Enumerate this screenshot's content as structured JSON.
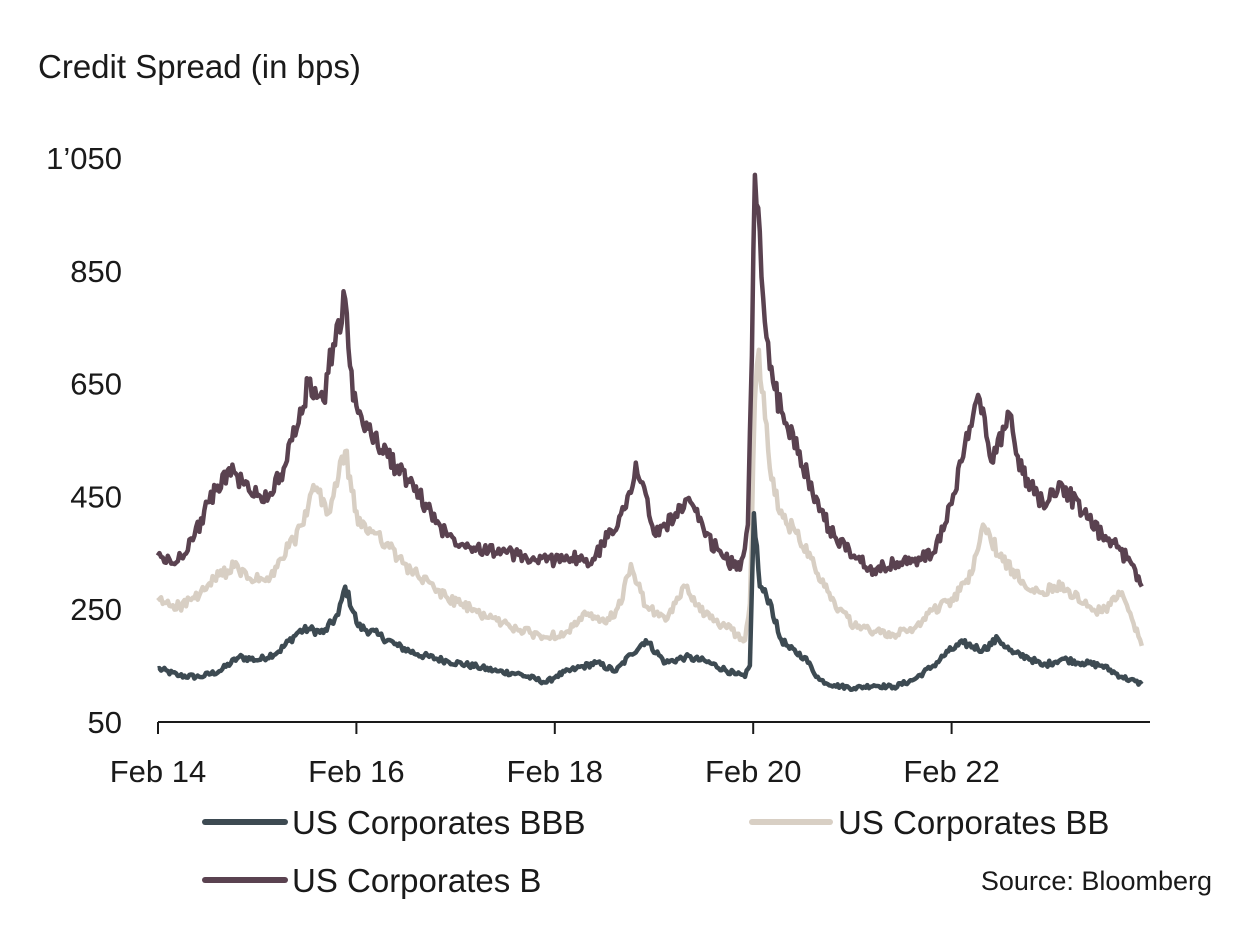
{
  "chart_data": {
    "type": "line",
    "title": "",
    "ylabel": "Credit Spread (in bps)",
    "xlabel": "",
    "ylim": [
      50,
      1050
    ],
    "yticks": [
      50,
      250,
      450,
      650,
      850,
      1050
    ],
    "ytick_labels": [
      "50",
      "250",
      "450",
      "650",
      "850",
      "1’050"
    ],
    "xlim": [
      2014.083,
      2024.083
    ],
    "xticks": [
      2014.083,
      2016.083,
      2018.083,
      2020.083,
      2022.083
    ],
    "xtick_labels": [
      "Feb 14",
      "Feb 16",
      "Feb 18",
      "Feb 20",
      "Feb 22"
    ],
    "grid": false,
    "legend_position": "bottom",
    "source": "Source: Bloomberg",
    "series": [
      {
        "name": "US Corporates BBB",
        "color": "#3d4a52",
        "x": [
          2014.08,
          2014.3,
          2014.5,
          2014.7,
          2014.9,
          2015.1,
          2015.3,
          2015.5,
          2015.6,
          2015.75,
          2015.9,
          2015.97,
          2016.1,
          2016.3,
          2016.5,
          2016.7,
          2017.0,
          2017.3,
          2017.5,
          2017.7,
          2018.0,
          2018.1,
          2018.3,
          2018.5,
          2018.7,
          2018.85,
          2019.0,
          2019.2,
          2019.4,
          2019.6,
          2019.9,
          2020.0,
          2020.05,
          2020.09,
          2020.15,
          2020.25,
          2020.35,
          2020.45,
          2020.6,
          2020.75,
          2020.9,
          2021.1,
          2021.3,
          2021.5,
          2021.7,
          2021.9,
          2022.05,
          2022.2,
          2022.4,
          2022.55,
          2022.7,
          2022.85,
          2023.0,
          2023.2,
          2023.4,
          2023.6,
          2023.8,
          2024.0
        ],
        "values": [
          145,
          132,
          130,
          140,
          165,
          160,
          175,
          210,
          215,
          208,
          240,
          290,
          220,
          205,
          185,
          170,
          158,
          148,
          140,
          136,
          120,
          132,
          145,
          155,
          140,
          170,
          195,
          155,
          165,
          158,
          135,
          130,
          150,
          420,
          290,
          265,
          200,
          180,
          165,
          125,
          115,
          110,
          115,
          112,
          125,
          150,
          175,
          190,
          178,
          198,
          172,
          165,
          150,
          162,
          155,
          150,
          130,
          117
        ]
      },
      {
        "name": "US Corporates BB",
        "color": "#d8cfc4",
        "x": [
          2014.08,
          2014.3,
          2014.5,
          2014.7,
          2014.85,
          2015.0,
          2015.2,
          2015.4,
          2015.55,
          2015.65,
          2015.8,
          2015.97,
          2016.1,
          2016.3,
          2016.5,
          2016.7,
          2017.0,
          2017.3,
          2017.5,
          2017.7,
          2018.0,
          2018.2,
          2018.4,
          2018.6,
          2018.75,
          2018.85,
          2019.0,
          2019.2,
          2019.4,
          2019.6,
          2019.8,
          2020.0,
          2020.05,
          2020.1,
          2020.14,
          2020.25,
          2020.35,
          2020.5,
          2020.65,
          2020.8,
          2020.95,
          2021.1,
          2021.3,
          2021.5,
          2021.7,
          2021.9,
          2022.1,
          2022.3,
          2022.4,
          2022.6,
          2022.8,
          2023.0,
          2023.2,
          2023.4,
          2023.6,
          2023.8,
          2024.0
        ],
        "values": [
          265,
          255,
          275,
          310,
          325,
          305,
          300,
          360,
          400,
          470,
          420,
          530,
          400,
          385,
          340,
          310,
          270,
          245,
          230,
          215,
          200,
          210,
          240,
          225,
          260,
          330,
          255,
          230,
          290,
          240,
          220,
          195,
          260,
          620,
          710,
          500,
          420,
          390,
          350,
          290,
          250,
          220,
          210,
          205,
          215,
          250,
          265,
          320,
          400,
          335,
          300,
          280,
          295,
          260,
          245,
          280,
          185
        ]
      },
      {
        "name": "US Corporates B",
        "color": "#5a4250",
        "x": [
          2014.08,
          2014.25,
          2014.45,
          2014.6,
          2014.8,
          2015.0,
          2015.2,
          2015.35,
          2015.5,
          2015.6,
          2015.75,
          2015.85,
          2015.97,
          2016.05,
          2016.2,
          2016.4,
          2016.6,
          2016.8,
          2017.0,
          2017.3,
          2017.6,
          2017.8,
          2018.0,
          2018.2,
          2018.45,
          2018.65,
          2018.8,
          2018.9,
          2019.1,
          2019.3,
          2019.45,
          2019.6,
          2019.8,
          2019.95,
          2020.03,
          2020.07,
          2020.1,
          2020.15,
          2020.2,
          2020.3,
          2020.4,
          2020.55,
          2020.7,
          2020.9,
          2021.1,
          2021.3,
          2021.5,
          2021.7,
          2021.9,
          2022.0,
          2022.2,
          2022.35,
          2022.5,
          2022.65,
          2022.8,
          2023.0,
          2023.2,
          2023.4,
          2023.6,
          2023.75,
          2023.9,
          2024.0
        ],
        "values": [
          345,
          330,
          380,
          440,
          500,
          460,
          450,
          500,
          580,
          650,
          620,
          720,
          800,
          620,
          570,
          520,
          480,
          430,
          380,
          360,
          350,
          340,
          335,
          345,
          330,
          390,
          430,
          510,
          380,
          420,
          440,
          380,
          340,
          320,
          400,
          700,
          1020,
          920,
          760,
          640,
          580,
          530,
          440,
          380,
          345,
          320,
          330,
          335,
          350,
          390,
          520,
          630,
          510,
          600,
          490,
          440,
          470,
          420,
          380,
          360,
          330,
          290
        ]
      }
    ]
  }
}
